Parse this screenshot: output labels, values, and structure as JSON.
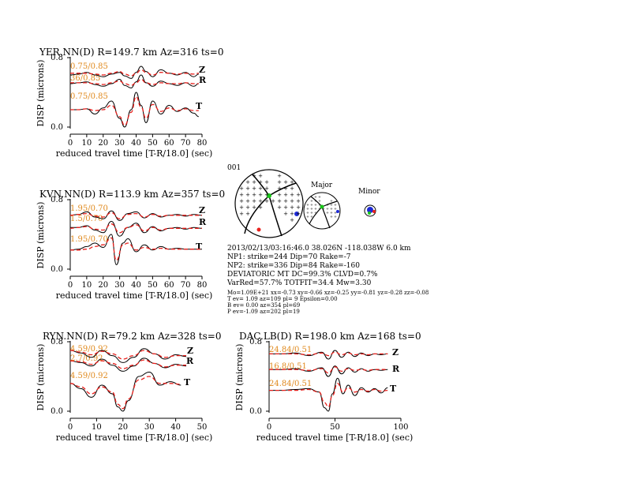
{
  "panels": [
    {
      "station_title": "YER.NN(D) R=149.7 km Az=316 ts=0",
      "ylabel": "DISP (microns)",
      "xlabel": "reduced travel time [T-R/18.0] (sec)",
      "xlim": [
        0,
        80
      ],
      "xticks": [
        "0",
        "10",
        "20",
        "30",
        "40",
        "50",
        "60",
        "70",
        "80"
      ],
      "yticks": [
        "0.8",
        "0.0"
      ],
      "traces": [
        {
          "component": "Z",
          "fit_label": "0.75/0.85"
        },
        {
          "component": "R",
          "fit_label": "36/0.85"
        },
        {
          "component": "T",
          "fit_label": "0.75/0.85"
        }
      ]
    },
    {
      "station_title": "KVN.NN(D) R=113.9 km Az=357 ts=0",
      "ylabel": "DISP (microns)",
      "xlabel": "reduced travel time [T-R/18.0] (sec)",
      "xlim": [
        0,
        80
      ],
      "xticks": [
        "0",
        "10",
        "20",
        "30",
        "40",
        "50",
        "60",
        "70",
        "80"
      ],
      "yticks": [
        "0.8",
        "0.0"
      ],
      "traces": [
        {
          "component": "Z",
          "fit_label": "1.95/0.70"
        },
        {
          "component": "R",
          "fit_label": "1.5/0.70"
        },
        {
          "component": "T",
          "fit_label": "1.95/0.70"
        }
      ]
    },
    {
      "station_title": "RYN.NN(D) R=79.2 km Az=328 ts=0",
      "ylabel": "DISP (microns)",
      "xlabel": "reduced travel time [T-R/18.0] (sec)",
      "xlim": [
        0,
        50
      ],
      "xticks": [
        "0",
        "10",
        "20",
        "30",
        "40",
        "50"
      ],
      "yticks": [
        "0.8",
        "0.0"
      ],
      "traces": [
        {
          "component": "Z",
          "fit_label": "4.59/0.92"
        },
        {
          "component": "R",
          "fit_label": "2.7/0.92"
        },
        {
          "component": "T",
          "fit_label": "4.59/0.92"
        }
      ]
    },
    {
      "station_title": "DAC.LB(D) R=198.0 km Az=168 ts=0",
      "ylabel": "DISP (microns)",
      "xlabel": "reduced travel time [T-R/18.0] (sec)",
      "xlim": [
        0,
        100
      ],
      "xticks": [
        "0",
        "50",
        "100"
      ],
      "yticks": [
        "0.8",
        "0.0"
      ],
      "traces": [
        {
          "component": "Z",
          "fit_label": "24.84/0.51"
        },
        {
          "component": "R",
          "fit_label": "16.8/0.51"
        },
        {
          "component": "T",
          "fit_label": "24.84/0.51"
        }
      ]
    }
  ],
  "solution": {
    "event_id": "001",
    "major_label": "Major",
    "minor_label": "Minor",
    "lines": [
      "2013/02/13/03:16:46.0 38.026N -118.038W 6.0 km",
      "NP1: strike=244 Dip=70 Rake=-7",
      "NP2: strike=336 Dip=84 Rake=-160",
      "DEVIATORIC MT DC=99.3% CLVD=0.7%",
      "VarRed=57.7% TOTFIT=34.4 Mw=3.30"
    ],
    "small_lines": [
      "Mo=1.09E+21 xx=-0.73 xy=-0.66 xz=-0.25 yy=-0.81 yz=-0.28 zz=-0.08",
      "T ev= 1.09 az=109 pl= 9 Epsilon=0.00",
      "B ev= 0.00 az=354 pl=69",
      "P ev=-1.09 az=202 pl=19"
    ]
  },
  "colors": {
    "observed": "#000000",
    "synthetic": "#e8201c",
    "fit_label": "#e08a1e",
    "compressional": "#e8201c",
    "t_axis": "#1f2bd6",
    "b_axis": "#19c619"
  },
  "chart_data": [
    {
      "type": "line",
      "title": "YER.NN(D) R=149.7 km Az=316 ts=0",
      "xlabel": "reduced travel time [T-R/18.0] (sec)",
      "ylabel": "DISP (microns)",
      "xlim": [
        0,
        80
      ],
      "ylim": [
        0,
        0.8
      ],
      "series": [
        {
          "name": "Z",
          "x": [
            0,
            5,
            10,
            15,
            20,
            25,
            30,
            33,
            37,
            40,
            43,
            46,
            50,
            55,
            60,
            65,
            70,
            75,
            78
          ],
          "observed": [
            0.6,
            0.61,
            0.63,
            0.6,
            0.58,
            0.61,
            0.63,
            0.59,
            0.56,
            0.63,
            0.7,
            0.64,
            0.58,
            0.66,
            0.62,
            0.6,
            0.63,
            0.58,
            0.61
          ],
          "synthetic": [
            0.62,
            0.62,
            0.62,
            0.61,
            0.6,
            0.62,
            0.64,
            0.61,
            0.59,
            0.62,
            0.66,
            0.63,
            0.6,
            0.63,
            0.62,
            0.61,
            0.62,
            0.61,
            0.62
          ]
        },
        {
          "name": "R",
          "x": [
            0,
            5,
            10,
            15,
            20,
            25,
            30,
            33,
            37,
            40,
            43,
            46,
            50,
            55,
            60,
            65,
            70,
            75,
            78
          ],
          "observed": [
            0.5,
            0.51,
            0.52,
            0.49,
            0.47,
            0.5,
            0.55,
            0.48,
            0.45,
            0.52,
            0.6,
            0.51,
            0.47,
            0.53,
            0.5,
            0.48,
            0.51,
            0.47,
            0.5
          ],
          "synthetic": [
            0.51,
            0.51,
            0.51,
            0.5,
            0.49,
            0.51,
            0.53,
            0.5,
            0.48,
            0.51,
            0.55,
            0.51,
            0.49,
            0.51,
            0.5,
            0.5,
            0.51,
            0.5,
            0.5
          ]
        },
        {
          "name": "T",
          "x": [
            0,
            5,
            10,
            15,
            20,
            25,
            30,
            33,
            37,
            40,
            43,
            46,
            50,
            55,
            60,
            65,
            70,
            75,
            78
          ],
          "observed": [
            0.2,
            0.2,
            0.21,
            0.15,
            0.22,
            0.3,
            0.1,
            0.0,
            0.2,
            0.4,
            0.25,
            0.05,
            0.3,
            0.15,
            0.25,
            0.18,
            0.22,
            0.16,
            0.12
          ],
          "synthetic": [
            0.2,
            0.2,
            0.21,
            0.19,
            0.2,
            0.25,
            0.12,
            0.02,
            0.17,
            0.35,
            0.23,
            0.1,
            0.26,
            0.18,
            0.22,
            0.19,
            0.21,
            0.19,
            0.19
          ]
        }
      ]
    },
    {
      "type": "line",
      "title": "KVN.NN(D) R=113.9 km Az=357 ts=0",
      "xlabel": "reduced travel time [T-R/18.0] (sec)",
      "ylabel": "DISP (microns)",
      "xlim": [
        0,
        80
      ],
      "ylim": [
        0,
        0.8
      ],
      "series": [
        {
          "name": "Z",
          "x": [
            0,
            5,
            10,
            15,
            20,
            25,
            30,
            35,
            40,
            45,
            50,
            55,
            60,
            65,
            70,
            75,
            80
          ],
          "observed": [
            0.62,
            0.63,
            0.66,
            0.6,
            0.58,
            0.67,
            0.56,
            0.64,
            0.66,
            0.59,
            0.64,
            0.6,
            0.62,
            0.63,
            0.61,
            0.63,
            0.62
          ],
          "synthetic": [
            0.62,
            0.63,
            0.64,
            0.61,
            0.6,
            0.65,
            0.58,
            0.63,
            0.64,
            0.6,
            0.63,
            0.61,
            0.62,
            0.62,
            0.62,
            0.62,
            0.62
          ]
        },
        {
          "name": "R",
          "x": [
            0,
            5,
            10,
            15,
            20,
            25,
            30,
            35,
            40,
            45,
            50,
            55,
            60,
            65,
            70,
            75,
            80
          ],
          "observed": [
            0.48,
            0.48,
            0.5,
            0.45,
            0.42,
            0.55,
            0.38,
            0.48,
            0.53,
            0.42,
            0.49,
            0.44,
            0.47,
            0.48,
            0.46,
            0.48,
            0.47
          ],
          "synthetic": [
            0.47,
            0.48,
            0.49,
            0.46,
            0.45,
            0.52,
            0.42,
            0.48,
            0.51,
            0.44,
            0.48,
            0.45,
            0.47,
            0.47,
            0.47,
            0.47,
            0.47
          ]
        },
        {
          "name": "T",
          "x": [
            0,
            5,
            10,
            15,
            20,
            25,
            28,
            32,
            35,
            40,
            45,
            50,
            55,
            60,
            65,
            70,
            75,
            80
          ],
          "observed": [
            0.22,
            0.23,
            0.26,
            0.3,
            0.25,
            0.4,
            0.05,
            0.3,
            0.35,
            0.2,
            0.28,
            0.22,
            0.26,
            0.23,
            0.24,
            0.23,
            0.23,
            0.23
          ],
          "synthetic": [
            0.22,
            0.22,
            0.23,
            0.26,
            0.28,
            0.36,
            0.1,
            0.28,
            0.3,
            0.22,
            0.25,
            0.23,
            0.24,
            0.23,
            0.23,
            0.23,
            0.23,
            0.23
          ]
        }
      ]
    },
    {
      "type": "line",
      "title": "RYN.NN(D) R=79.2 km Az=328 ts=0",
      "xlabel": "reduced travel time [T-R/18.0] (sec)",
      "ylabel": "DISP (microns)",
      "xlim": [
        0,
        50
      ],
      "ylim": [
        0,
        0.8
      ],
      "series": [
        {
          "name": "Z",
          "x": [
            0,
            4,
            8,
            12,
            16,
            20,
            24,
            28,
            32,
            36,
            40,
            44
          ],
          "observed": [
            0.7,
            0.67,
            0.62,
            0.7,
            0.64,
            0.56,
            0.62,
            0.72,
            0.66,
            0.6,
            0.65,
            0.63
          ],
          "synthetic": [
            0.7,
            0.68,
            0.65,
            0.69,
            0.66,
            0.6,
            0.64,
            0.7,
            0.66,
            0.62,
            0.64,
            0.64
          ]
        },
        {
          "name": "R",
          "x": [
            0,
            4,
            8,
            12,
            16,
            20,
            24,
            28,
            32,
            36,
            40,
            44
          ],
          "observed": [
            0.58,
            0.56,
            0.52,
            0.6,
            0.53,
            0.46,
            0.52,
            0.61,
            0.55,
            0.5,
            0.54,
            0.52
          ],
          "synthetic": [
            0.58,
            0.57,
            0.54,
            0.58,
            0.55,
            0.49,
            0.53,
            0.59,
            0.55,
            0.51,
            0.53,
            0.53
          ]
        },
        {
          "name": "T",
          "x": [
            0,
            4,
            8,
            12,
            16,
            18,
            20,
            22,
            26,
            30,
            34,
            38,
            42
          ],
          "observed": [
            0.32,
            0.26,
            0.16,
            0.3,
            0.2,
            0.05,
            0.0,
            0.12,
            0.4,
            0.45,
            0.3,
            0.34,
            0.3
          ],
          "synthetic": [
            0.32,
            0.28,
            0.2,
            0.28,
            0.22,
            0.08,
            0.03,
            0.14,
            0.36,
            0.4,
            0.32,
            0.32,
            0.31
          ]
        }
      ]
    },
    {
      "type": "line",
      "title": "DAC.LB(D) R=198.0 km Az=168 ts=0",
      "xlabel": "reduced travel time [T-R/18.0] (sec)",
      "ylabel": "DISP (microns)",
      "xlim": [
        0,
        100
      ],
      "ylim": [
        0,
        0.8
      ],
      "series": [
        {
          "name": "Z",
          "x": [
            0,
            10,
            20,
            30,
            40,
            45,
            50,
            55,
            60,
            65,
            70,
            75,
            80,
            85,
            90
          ],
          "observed": [
            0.66,
            0.66,
            0.67,
            0.64,
            0.68,
            0.6,
            0.7,
            0.62,
            0.68,
            0.63,
            0.67,
            0.64,
            0.66,
            0.65,
            0.66
          ],
          "synthetic": [
            0.66,
            0.66,
            0.66,
            0.65,
            0.67,
            0.64,
            0.68,
            0.65,
            0.67,
            0.65,
            0.66,
            0.65,
            0.66,
            0.66,
            0.66
          ]
        },
        {
          "name": "R",
          "x": [
            0,
            10,
            20,
            30,
            40,
            45,
            50,
            55,
            60,
            65,
            70,
            75,
            80,
            85,
            90
          ],
          "observed": [
            0.48,
            0.48,
            0.49,
            0.46,
            0.5,
            0.4,
            0.52,
            0.43,
            0.5,
            0.45,
            0.49,
            0.46,
            0.48,
            0.47,
            0.48
          ],
          "synthetic": [
            0.48,
            0.48,
            0.48,
            0.47,
            0.49,
            0.44,
            0.51,
            0.46,
            0.49,
            0.47,
            0.48,
            0.47,
            0.48,
            0.48,
            0.48
          ]
        },
        {
          "name": "T",
          "x": [
            0,
            10,
            20,
            30,
            38,
            42,
            45,
            48,
            52,
            56,
            60,
            65,
            70,
            75,
            80,
            85,
            90
          ],
          "observed": [
            0.24,
            0.24,
            0.25,
            0.26,
            0.22,
            0.04,
            0.0,
            0.2,
            0.38,
            0.2,
            0.3,
            0.18,
            0.27,
            0.22,
            0.26,
            0.21,
            0.27
          ],
          "synthetic": [
            0.24,
            0.24,
            0.24,
            0.25,
            0.22,
            0.1,
            0.05,
            0.18,
            0.32,
            0.22,
            0.27,
            0.22,
            0.25,
            0.23,
            0.25,
            0.23,
            0.24
          ]
        }
      ]
    }
  ]
}
